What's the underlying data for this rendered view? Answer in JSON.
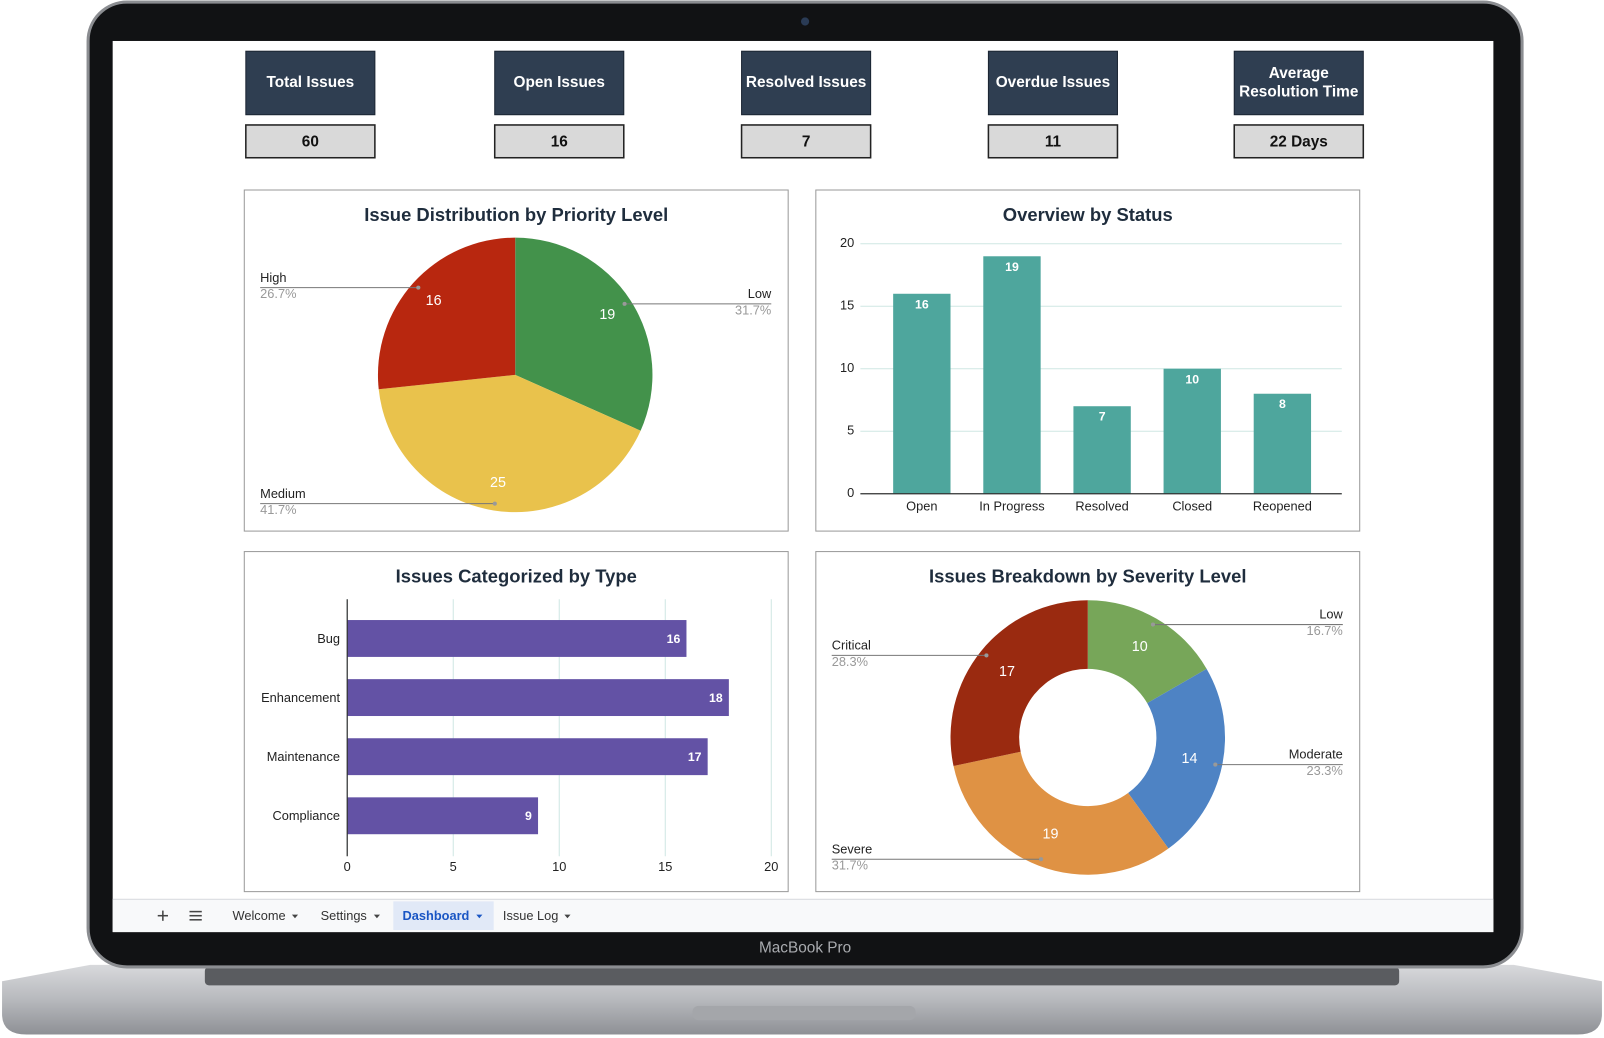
{
  "device_label": "MacBook Pro",
  "kpis": [
    {
      "label": "Total Issues",
      "value": 60
    },
    {
      "label": "Open Issues",
      "value": 16
    },
    {
      "label": "Resolved Issues",
      "value": 7
    },
    {
      "label": "Overdue Issues",
      "value": 11
    },
    {
      "label": "Average Resolution Time",
      "value": "22  Days"
    }
  ],
  "chart_data": [
    {
      "type": "pie",
      "title": "Issue Distribution by Priority Level",
      "categories": [
        "Low",
        "Medium",
        "High"
      ],
      "values": [
        19,
        25,
        16
      ],
      "percent_labels": [
        "31.7%",
        "41.7%",
        "26.7%"
      ],
      "colors": [
        "#43924b",
        "#e9c24c",
        "#b8270f"
      ]
    },
    {
      "type": "bar",
      "title": "Overview by Status",
      "categories": [
        "Open",
        "In Progress",
        "Resolved",
        "Closed",
        "Reopened"
      ],
      "values": [
        16,
        19,
        7,
        10,
        8
      ],
      "color": "#4ea69d",
      "ylim": [
        0,
        20
      ],
      "yticks": [
        0,
        5,
        10,
        15,
        20
      ],
      "grid": true
    },
    {
      "type": "hbar",
      "title": "Issues Categorized by Type",
      "categories": [
        "Bug",
        "Enhancement",
        "Maintenance",
        "Compliance"
      ],
      "values": [
        16,
        18,
        17,
        9
      ],
      "color": "#6352a5",
      "xlim": [
        0,
        20
      ],
      "xticks": [
        0,
        5,
        10,
        15,
        20
      ],
      "grid": true
    },
    {
      "type": "donut",
      "title": "Issues Breakdown by Severity Level",
      "categories": [
        "Low",
        "Moderate",
        "Severe",
        "Critical"
      ],
      "values": [
        10,
        14,
        19,
        17
      ],
      "percent_labels": [
        "16.7%",
        "23.3%",
        "31.7%",
        "28.3%"
      ],
      "colors": [
        "#77a659",
        "#4e83c4",
        "#df9244",
        "#9a2a10"
      ]
    }
  ],
  "tabs": [
    "Welcome",
    "Settings",
    "Dashboard",
    "Issue Log"
  ],
  "active_tab": 2
}
